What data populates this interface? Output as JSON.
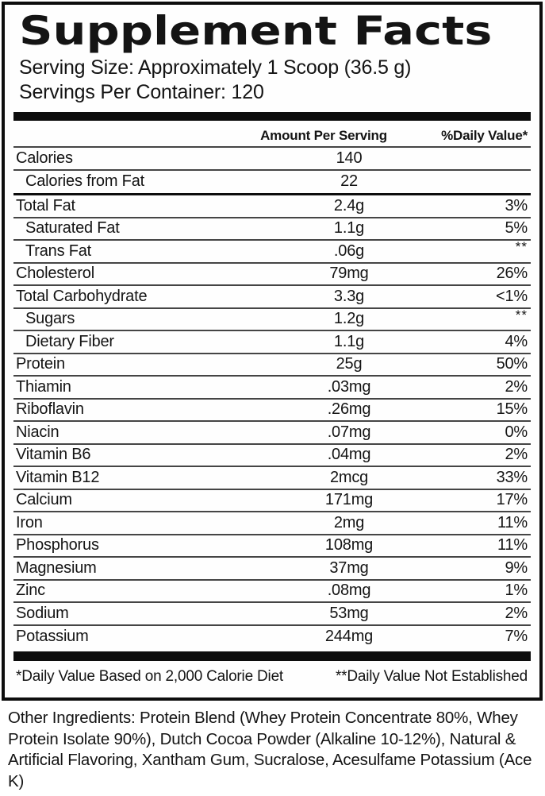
{
  "label": {
    "title": "Supplement Facts",
    "serving_size": "Serving Size: Approximately 1 Scoop (36.5 g)",
    "servings_per_container": "Servings Per Container: 120"
  },
  "table": {
    "columns": {
      "amount": "Amount Per Serving",
      "dv": "%Daily Value*"
    },
    "calorie_rows": [
      {
        "name": "Calories",
        "amount": "140",
        "dv": "",
        "indent": false
      },
      {
        "name": "Calories from Fat",
        "amount": "22",
        "dv": "",
        "indent": true
      }
    ],
    "nutrient_rows": [
      {
        "name": "Total Fat",
        "amount": "2.4g",
        "dv": "3%",
        "indent": false
      },
      {
        "name": "Saturated Fat",
        "amount": "1.1g",
        "dv": "5%",
        "indent": true
      },
      {
        "name": "Trans Fat",
        "amount": ".06g",
        "dv": "**",
        "indent": true
      },
      {
        "name": "Cholesterol",
        "amount": "79mg",
        "dv": "26%",
        "indent": false
      },
      {
        "name": "Total Carbohydrate",
        "amount": "3.3g",
        "dv": "<1%",
        "indent": false
      },
      {
        "name": "Sugars",
        "amount": "1.2g",
        "dv": "**",
        "indent": true
      },
      {
        "name": "Dietary Fiber",
        "amount": "1.1g",
        "dv": "4%",
        "indent": true
      },
      {
        "name": "Protein",
        "amount": "25g",
        "dv": "50%",
        "indent": false
      },
      {
        "name": "Thiamin",
        "amount": ".03mg",
        "dv": "2%",
        "indent": false
      },
      {
        "name": "Riboflavin",
        "amount": ".26mg",
        "dv": "15%",
        "indent": false
      },
      {
        "name": "Niacin",
        "amount": ".07mg",
        "dv": "0%",
        "indent": false
      },
      {
        "name": "Vitamin B6",
        "amount": ".04mg",
        "dv": "2%",
        "indent": false
      },
      {
        "name": "Vitamin B12",
        "amount": "2mcg",
        "dv": "33%",
        "indent": false
      },
      {
        "name": "Calcium",
        "amount": "171mg",
        "dv": "17%",
        "indent": false
      },
      {
        "name": "Iron",
        "amount": "2mg",
        "dv": "11%",
        "indent": false
      },
      {
        "name": "Phosphorus",
        "amount": "108mg",
        "dv": "11%",
        "indent": false
      },
      {
        "name": "Magnesium",
        "amount": "37mg",
        "dv": "9%",
        "indent": false
      },
      {
        "name": "Zinc",
        "amount": ".08mg",
        "dv": "1%",
        "indent": false
      },
      {
        "name": "Sodium",
        "amount": "53mg",
        "dv": "2%",
        "indent": false
      },
      {
        "name": "Potassium",
        "amount": "244mg",
        "dv": "7%",
        "indent": false
      }
    ]
  },
  "footnotes": {
    "daily_value": "*Daily Value Based on 2,000 Calorie Diet",
    "not_established": "**Daily Value Not Established"
  },
  "other_ingredients": "Other Ingredients: Protein Blend (Whey Protein Concentrate 80%, Whey Protein Isolate 90%), Dutch Cocoa Powder (Alkaline 10-12%), Natural & Artificial Flavoring, Xantham Gum, Sucralose, Acesulfame Potassium (Ace K)",
  "colors": {
    "text": "#141414",
    "rule_thin": "#454545",
    "rule_thick": "#0d0d0d",
    "background": "#ffffff"
  }
}
